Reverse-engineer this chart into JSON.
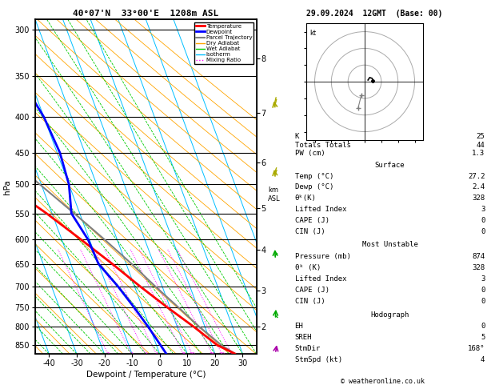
{
  "title_left": "40°07'N  33°00'E  1208m ASL",
  "title_right": "29.09.2024  12GMT  (Base: 00)",
  "xlabel": "Dewpoint / Temperature (°C)",
  "ylabel_left": "hPa",
  "pressure_levels": [
    300,
    350,
    400,
    450,
    500,
    550,
    600,
    650,
    700,
    750,
    800,
    850
  ],
  "pressure_min": 290,
  "pressure_max": 875,
  "temp_min": -45,
  "temp_max": 35,
  "isotherm_color": "#00bfff",
  "dry_adiabat_color": "#ffa500",
  "wet_adiabat_color": "#00cc00",
  "mixing_ratio_color": "#ff00ff",
  "mixing_ratio_values": [
    1,
    2,
    3,
    4,
    8,
    10,
    16,
    20,
    25
  ],
  "temp_profile_temp": [
    27.2,
    22.0,
    16.0,
    9.0,
    2.0,
    -5.0,
    -13.0,
    -22.0,
    -33.0,
    -45.0,
    -55.0,
    -61.0
  ],
  "temp_profile_pres": [
    874,
    850,
    800,
    750,
    700,
    650,
    600,
    550,
    500,
    450,
    400,
    370
  ],
  "dewp_profile_temp": [
    2.4,
    1.5,
    -0.5,
    -3.0,
    -6.0,
    -10.0,
    -10.5,
    -13.0,
    -10.0,
    -9.0,
    -10.0,
    -12.0
  ],
  "dewp_profile_pres": [
    874,
    850,
    800,
    750,
    700,
    650,
    600,
    550,
    500,
    450,
    400,
    370
  ],
  "parcel_temp": [
    27.2,
    23.5,
    18.0,
    13.0,
    7.5,
    2.0,
    -4.5,
    -12.0,
    -20.5,
    -30.0,
    -40.0,
    -46.0
  ],
  "parcel_pres": [
    874,
    850,
    800,
    750,
    700,
    650,
    600,
    550,
    500,
    450,
    400,
    370
  ],
  "km_ticks": [
    2,
    3,
    4,
    5,
    6,
    7,
    8
  ],
  "km_pres": [
    800,
    710,
    620,
    540,
    465,
    395,
    330
  ],
  "legend_entries": [
    {
      "label": "Temperature",
      "color": "#ff0000",
      "lw": 2
    },
    {
      "label": "Dewpoint",
      "color": "#0000ff",
      "lw": 2
    },
    {
      "label": "Parcel Trajectory",
      "color": "#808080",
      "lw": 1.5
    },
    {
      "label": "Dry Adiabat",
      "color": "#ffa500",
      "lw": 1
    },
    {
      "label": "Wet Adiabat",
      "color": "#00cc00",
      "lw": 1
    },
    {
      "label": "Isotherm",
      "color": "#00bfff",
      "lw": 1
    },
    {
      "label": "Mixing Ratio",
      "color": "#ff00ff",
      "lw": 1,
      "ls": "dotted"
    }
  ],
  "stats": {
    "K": 25,
    "TT": 44,
    "PW": 1.3,
    "surf_temp": 27.2,
    "surf_dewp": 2.4,
    "surf_thetae": 328,
    "surf_li": 3,
    "surf_cape": 0,
    "surf_cin": 0,
    "mu_pres": 874,
    "mu_thetae": 328,
    "mu_li": 3,
    "mu_cape": 0,
    "mu_cin": 0,
    "EH": 0,
    "SREH": 5,
    "StmDir": 168,
    "StmSpd": 4
  },
  "hodo_rings": [
    10,
    20,
    30
  ],
  "hodo_pts_u": [
    2.0,
    3.0,
    4.5,
    5.0
  ],
  "hodo_pts_v": [
    1.0,
    2.5,
    2.0,
    0.5
  ],
  "hodo_storm_u": [
    -2.0,
    -4.0
  ],
  "hodo_storm_v": [
    -8.0,
    -16.0
  ],
  "wind_barbs": [
    {
      "pres": 874,
      "color": "#aa00aa",
      "u": 0.5,
      "v": -1.0,
      "spd": 4
    },
    {
      "pres": 780,
      "color": "#00aa00",
      "u": 0.3,
      "v": -2.0,
      "spd": 5
    },
    {
      "pres": 640,
      "color": "#00aa00",
      "u": -0.5,
      "v": -3.0,
      "spd": 8
    },
    {
      "pres": 490,
      "color": "#aaaa00",
      "u": -1.5,
      "v": -3.5,
      "spd": 10
    },
    {
      "pres": 390,
      "color": "#aaaa00",
      "u": -2.5,
      "v": -4.0,
      "spd": 12
    }
  ]
}
